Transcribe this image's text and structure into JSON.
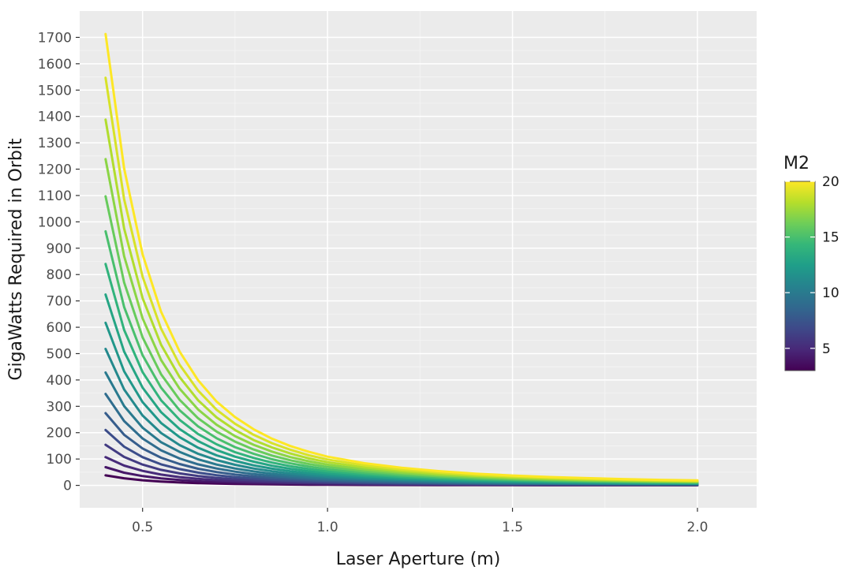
{
  "chart_data": {
    "type": "line",
    "xlabel": "Laser Aperture (m)",
    "ylabel": "GigaWatts Required in Orbit",
    "xlim": [
      0.33,
      2.16
    ],
    "ylim": [
      -85,
      1800
    ],
    "x_ticks": [
      0.5,
      1.0,
      1.5,
      2.0
    ],
    "x_tick_labels": [
      "0.5",
      "1.0",
      "1.5",
      "2.0"
    ],
    "y_ticks": [
      0,
      100,
      200,
      300,
      400,
      500,
      600,
      700,
      800,
      900,
      1000,
      1100,
      1200,
      1300,
      1400,
      1500,
      1600,
      1700
    ],
    "y_tick_labels": [
      "0",
      "100",
      "200",
      "300",
      "400",
      "500",
      "600",
      "700",
      "800",
      "900",
      "1000",
      "1100",
      "1200",
      "1300",
      "1400",
      "1500",
      "1600",
      "1700"
    ],
    "x": [
      0.4,
      0.45,
      0.5,
      0.55,
      0.6,
      0.65,
      0.7,
      0.75,
      0.8,
      0.85,
      0.9,
      0.95,
      1.0,
      1.1,
      1.2,
      1.3,
      1.4,
      1.5,
      1.6,
      1.7,
      1.8,
      1.9,
      2.0
    ],
    "grid": true,
    "legend": {
      "title": "M2",
      "type": "colorbar",
      "position": "right",
      "range": [
        3,
        20
      ],
      "ticks": [
        5,
        10,
        15,
        20
      ],
      "tick_labels": [
        "5",
        "10",
        "15",
        "20"
      ]
    },
    "colormap": [
      "#440154",
      "#482878",
      "#3e4989",
      "#31688e",
      "#26828e",
      "#1f9e89",
      "#35b779",
      "#6ece58",
      "#b5de2b",
      "#fde725"
    ],
    "series": [
      {
        "m2": 3,
        "values": [
          38,
          27,
          19.5,
          14.5,
          11.1,
          8.7,
          7.0,
          5.7,
          4.7,
          3.9,
          3.3,
          2.8,
          2.4,
          1.9,
          1.5,
          1.2,
          1.0,
          0.8,
          0.7,
          0.6,
          0.5,
          0.45,
          0.4
        ]
      },
      {
        "m2": 4,
        "values": [
          69,
          48,
          35.3,
          26.3,
          20.2,
          15.8,
          12.6,
          10.3,
          8.5,
          7.1,
          6.0,
          5.1,
          4.4,
          3.4,
          2.7,
          2.2,
          1.8,
          1.5,
          1.3,
          1.1,
          0.95,
          0.85,
          0.8
        ]
      },
      {
        "m2": 5,
        "values": [
          107,
          75,
          55,
          41,
          31.5,
          24.7,
          19.7,
          16.0,
          13.2,
          11.0,
          9.3,
          7.9,
          6.8,
          5.3,
          4.2,
          3.4,
          2.8,
          2.4,
          2.0,
          1.7,
          1.5,
          1.35,
          1.2
        ]
      },
      {
        "m2": 6,
        "values": [
          154,
          108,
          79,
          59,
          45.5,
          35.6,
          28.4,
          23.1,
          19.0,
          15.9,
          13.4,
          11.4,
          9.8,
          7.6,
          6.0,
          4.9,
          4.0,
          3.4,
          2.9,
          2.5,
          2.2,
          1.95,
          1.7
        ]
      },
      {
        "m2": 7,
        "values": [
          210,
          147,
          107,
          80,
          62,
          48.5,
          38.7,
          31.4,
          25.9,
          21.6,
          18.2,
          15.5,
          13.4,
          10.3,
          8.2,
          6.6,
          5.5,
          4.6,
          3.9,
          3.4,
          3.0,
          2.7,
          2.4
        ]
      },
      {
        "m2": 8,
        "values": [
          274,
          192,
          140,
          105,
          81,
          63,
          50.5,
          41.1,
          33.9,
          28.2,
          23.8,
          20.3,
          17.4,
          13.5,
          10.7,
          8.6,
          7.1,
          6.0,
          5.1,
          4.4,
          3.9,
          3.4,
          3.1
        ]
      },
      {
        "m2": 9,
        "values": [
          347,
          244,
          178,
          133,
          102,
          80,
          64,
          52,
          42.9,
          35.8,
          30.1,
          25.6,
          22.0,
          17.1,
          13.5,
          10.9,
          9.0,
          7.6,
          6.5,
          5.6,
          4.9,
          4.3,
          3.9
        ]
      },
      {
        "m2": 10,
        "values": [
          428,
          301,
          219,
          164,
          127,
          99,
          79,
          64,
          52.9,
          44.1,
          37.2,
          31.6,
          27.2,
          21.1,
          16.7,
          13.5,
          11.1,
          9.4,
          8.0,
          6.9,
          6.0,
          5.3,
          4.8
        ]
      },
      {
        "m2": 11,
        "values": [
          518,
          364,
          265,
          199,
          153,
          120,
          96,
          78,
          64,
          53.4,
          45.0,
          38.3,
          32.9,
          25.5,
          20.2,
          16.4,
          13.5,
          11.3,
          9.6,
          8.3,
          7.3,
          6.4,
          5.8
        ]
      },
      {
        "m2": 12,
        "values": [
          617,
          433,
          316,
          237,
          183,
          143,
          114,
          93,
          76,
          63.5,
          53.5,
          45.5,
          39.1,
          30.3,
          24.0,
          19.5,
          16.0,
          13.5,
          11.5,
          9.9,
          8.6,
          7.6,
          6.9
        ]
      },
      {
        "m2": 13,
        "values": [
          724,
          508,
          371,
          278,
          214,
          168,
          134,
          109,
          90,
          74.5,
          62.8,
          53.4,
          45.9,
          35.6,
          28.2,
          22.8,
          18.8,
          15.8,
          13.5,
          11.6,
          10.1,
          8.9,
          8.0
        ]
      },
      {
        "m2": 14,
        "values": [
          840,
          590,
          430,
          323,
          249,
          195,
          156,
          126,
          104,
          86.4,
          72.8,
          62.0,
          53.3,
          41.3,
          32.7,
          26.5,
          21.8,
          18.4,
          15.6,
          13.5,
          11.7,
          10.4,
          9.3
        ]
      },
      {
        "m2": 15,
        "values": [
          964,
          677,
          494,
          371,
          285,
          224,
          179,
          145,
          120,
          99,
          83.6,
          71.1,
          61.1,
          47.4,
          37.5,
          30.4,
          25.1,
          21.1,
          17.9,
          15.5,
          13.5,
          11.9,
          10.6
        ]
      },
      {
        "m2": 16,
        "values": [
          1097,
          770,
          562,
          422,
          325,
          255,
          204,
          166,
          136,
          113,
          95.1,
          80.9,
          69.6,
          53.9,
          42.7,
          34.6,
          28.5,
          24.0,
          20.4,
          17.6,
          15.3,
          13.5,
          12.1
        ]
      },
      {
        "m2": 17,
        "values": [
          1238,
          870,
          634,
          476,
          367,
          288,
          230,
          187,
          154,
          128,
          107,
          91.3,
          78.5,
          60.9,
          48.2,
          39.0,
          32.2,
          27.0,
          23.0,
          19.8,
          17.3,
          15.2,
          13.6
        ]
      },
      {
        "m2": 18,
        "values": [
          1388,
          975,
          711,
          534,
          411,
          323,
          258,
          210,
          172,
          144,
          121,
          102,
          88.0,
          68.2,
          54.0,
          43.8,
          36.1,
          30.3,
          25.8,
          22.2,
          19.4,
          17.0,
          15.3
        ]
      },
      {
        "m2": 19,
        "values": [
          1547,
          1086,
          792,
          595,
          458,
          360,
          287,
          234,
          192,
          160,
          135,
          114,
          98.1,
          76.0,
          60.2,
          48.8,
          40.2,
          33.7,
          28.7,
          24.8,
          21.6,
          19.0,
          17.0
        ]
      },
      {
        "m2": 20,
        "values": [
          1713,
          1203,
          877,
          659,
          508,
          399,
          318,
          259,
          213,
          177,
          149,
          127,
          109,
          84.2,
          66.7,
          54.0,
          44.5,
          37.4,
          31.8,
          27.4,
          23.9,
          21.0,
          18.9
        ]
      }
    ]
  }
}
